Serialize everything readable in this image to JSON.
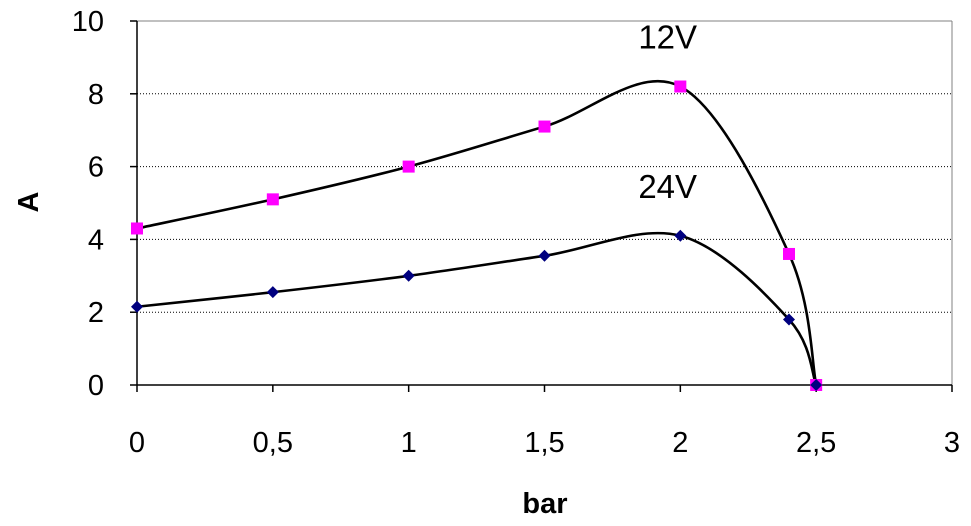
{
  "chart_data": {
    "type": "scatter",
    "title": "",
    "xlabel": "bar",
    "ylabel": "A",
    "xlim": [
      0,
      3
    ],
    "ylim": [
      0,
      10
    ],
    "x_ticks": [
      "0",
      "0,5",
      "1",
      "1,5",
      "2",
      "2,5",
      "3"
    ],
    "y_ticks": [
      "0",
      "2",
      "4",
      "6",
      "8",
      "10"
    ],
    "grid": "horizontal dotted",
    "legend": "none",
    "trendline": "smooth curve through points",
    "series": [
      {
        "name": "12V",
        "marker": "square",
        "color": "#ff00ff",
        "x": [
          0,
          0.5,
          1,
          1.5,
          2,
          2.4,
          2.5
        ],
        "y": [
          4.3,
          5.1,
          6.0,
          7.1,
          8.2,
          3.6,
          0
        ]
      },
      {
        "name": "24V",
        "marker": "diamond",
        "color": "#00007f",
        "x": [
          0,
          0.5,
          1,
          1.5,
          2,
          2.4,
          2.5
        ],
        "y": [
          2.15,
          2.55,
          3.0,
          3.55,
          4.1,
          1.8,
          0
        ]
      }
    ]
  }
}
